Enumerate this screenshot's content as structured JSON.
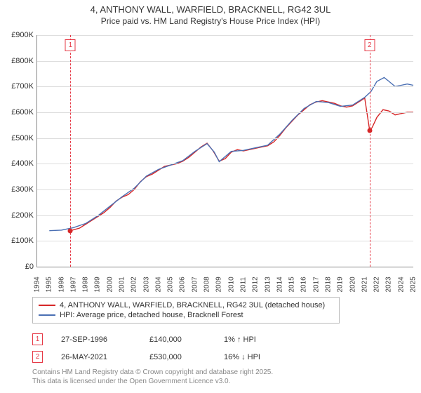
{
  "title": "4, ANTHONY WALL, WARFIELD, BRACKNELL, RG42 3UL",
  "subtitle": "Price paid vs. HM Land Registry's House Price Index (HPI)",
  "chart": {
    "type": "line",
    "background_color": "#ffffff",
    "grid_color": "#dddddd",
    "ylim": [
      0,
      900000
    ],
    "ytick_step": 100000,
    "yticks": [
      "£0",
      "£100K",
      "£200K",
      "£300K",
      "£400K",
      "£500K",
      "£600K",
      "£700K",
      "£800K",
      "£900K"
    ],
    "xlim": [
      1994,
      2025
    ],
    "xticks": [
      "1994",
      "1995",
      "1996",
      "1997",
      "1998",
      "1999",
      "2000",
      "2001",
      "2002",
      "2003",
      "2004",
      "2005",
      "2006",
      "2007",
      "2008",
      "2009",
      "2010",
      "2011",
      "2012",
      "2013",
      "2014",
      "2015",
      "2016",
      "2017",
      "2018",
      "2019",
      "2020",
      "2021",
      "2022",
      "2023",
      "2024",
      "2025"
    ],
    "series": [
      {
        "name": "4, ANTHONY WALL, WARFIELD, BRACKNELL, RG42 3UL (detached house)",
        "color": "#d62728",
        "line_width": 1.4,
        "data": [
          [
            1996.74,
            140000
          ],
          [
            1997.5,
            150000
          ],
          [
            1998.0,
            165000
          ],
          [
            1998.5,
            180000
          ],
          [
            1999.0,
            195000
          ],
          [
            1999.5,
            210000
          ],
          [
            2000.0,
            230000
          ],
          [
            2000.5,
            255000
          ],
          [
            2001.0,
            270000
          ],
          [
            2001.5,
            280000
          ],
          [
            2002.0,
            300000
          ],
          [
            2002.5,
            330000
          ],
          [
            2003.0,
            350000
          ],
          [
            2003.5,
            360000
          ],
          [
            2004.0,
            375000
          ],
          [
            2004.5,
            390000
          ],
          [
            2005.0,
            395000
          ],
          [
            2005.5,
            400000
          ],
          [
            2006.0,
            410000
          ],
          [
            2006.5,
            425000
          ],
          [
            2007.0,
            445000
          ],
          [
            2007.5,
            465000
          ],
          [
            2008.0,
            480000
          ],
          [
            2008.5,
            450000
          ],
          [
            2009.0,
            410000
          ],
          [
            2009.5,
            420000
          ],
          [
            2010.0,
            445000
          ],
          [
            2010.5,
            455000
          ],
          [
            2011.0,
            450000
          ],
          [
            2011.5,
            455000
          ],
          [
            2012.0,
            460000
          ],
          [
            2012.5,
            465000
          ],
          [
            2013.0,
            470000
          ],
          [
            2013.5,
            485000
          ],
          [
            2014.0,
            510000
          ],
          [
            2014.5,
            540000
          ],
          [
            2015.0,
            565000
          ],
          [
            2015.5,
            590000
          ],
          [
            2016.0,
            610000
          ],
          [
            2016.5,
            630000
          ],
          [
            2017.0,
            640000
          ],
          [
            2017.5,
            645000
          ],
          [
            2018.0,
            640000
          ],
          [
            2018.5,
            635000
          ],
          [
            2019.0,
            625000
          ],
          [
            2019.5,
            620000
          ],
          [
            2020.0,
            625000
          ],
          [
            2020.5,
            640000
          ],
          [
            2021.0,
            655000
          ],
          [
            2021.4,
            530000
          ],
          [
            2021.6,
            540000
          ],
          [
            2022.0,
            580000
          ],
          [
            2022.5,
            610000
          ],
          [
            2023.0,
            605000
          ],
          [
            2023.5,
            590000
          ],
          [
            2024.0,
            595000
          ],
          [
            2024.5,
            600000
          ],
          [
            2025.0,
            600000
          ]
        ]
      },
      {
        "name": "HPI: Average price, detached house, Bracknell Forest",
        "color": "#4a6fb3",
        "line_width": 1.3,
        "data": [
          [
            1995.0,
            140000
          ],
          [
            1996.0,
            142000
          ],
          [
            1997.0,
            152000
          ],
          [
            1998.0,
            168000
          ],
          [
            1999.0,
            198000
          ],
          [
            2000.0,
            235000
          ],
          [
            2001.0,
            272000
          ],
          [
            2002.0,
            305000
          ],
          [
            2003.0,
            352000
          ],
          [
            2004.0,
            378000
          ],
          [
            2005.0,
            395000
          ],
          [
            2006.0,
            412000
          ],
          [
            2007.0,
            448000
          ],
          [
            2008.0,
            478000
          ],
          [
            2008.6,
            445000
          ],
          [
            2009.0,
            408000
          ],
          [
            2010.0,
            448000
          ],
          [
            2011.0,
            452000
          ],
          [
            2012.0,
            462000
          ],
          [
            2013.0,
            472000
          ],
          [
            2014.0,
            515000
          ],
          [
            2015.0,
            568000
          ],
          [
            2016.0,
            615000
          ],
          [
            2017.0,
            642000
          ],
          [
            2018.0,
            638000
          ],
          [
            2019.0,
            623000
          ],
          [
            2020.0,
            628000
          ],
          [
            2021.0,
            658000
          ],
          [
            2021.5,
            680000
          ],
          [
            2022.0,
            720000
          ],
          [
            2022.6,
            735000
          ],
          [
            2023.0,
            720000
          ],
          [
            2023.5,
            700000
          ],
          [
            2024.0,
            705000
          ],
          [
            2024.5,
            710000
          ],
          [
            2025.0,
            705000
          ]
        ]
      }
    ],
    "sales": [
      {
        "num": "1",
        "year": 1996.74,
        "price": 140000,
        "marker_color": "#d62728",
        "date": "27-SEP-1996",
        "price_label": "£140,000",
        "diff": "1% ↑ HPI"
      },
      {
        "num": "2",
        "year": 2021.4,
        "price": 530000,
        "marker_color": "#d62728",
        "date": "26-MAY-2021",
        "price_label": "£530,000",
        "diff": "16% ↓ HPI"
      }
    ]
  },
  "footer_lines": [
    "Contains HM Land Registry data © Crown copyright and database right 2025.",
    "This data is licensed under the Open Government Licence v3.0."
  ]
}
